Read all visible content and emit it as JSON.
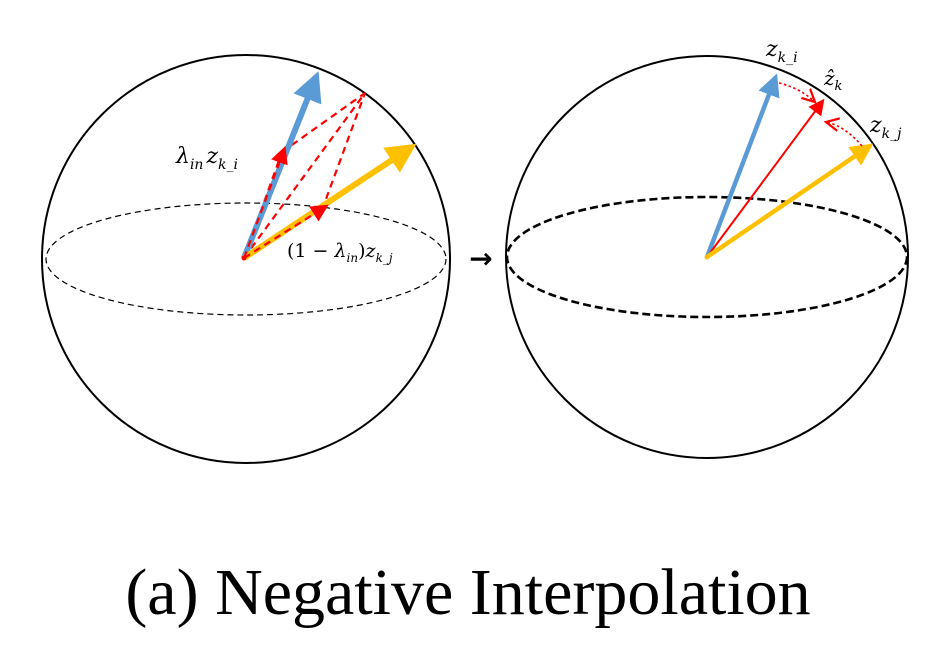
{
  "caption": "(a)  Negative Interpolation",
  "colors": {
    "blue_vector": "#5b9bd5",
    "yellow_vector": "#ffc000",
    "red_vector": "#ff0000",
    "outline": "#000000",
    "background": "#ffffff"
  },
  "left_sphere": {
    "labels": {
      "lambda_zi": {
        "lambda": "λ",
        "lambda_sub": "in",
        "z": "z",
        "z_sub": "k_i"
      },
      "one_minus_lambda_zj": {
        "prefix": "(1 − ",
        "lambda": "λ",
        "lambda_sub": "in",
        "suffix": ")",
        "z": "z",
        "z_sub": "k_j"
      }
    }
  },
  "transition_arrow": "→",
  "right_sphere": {
    "labels": {
      "zi": {
        "z": "z",
        "z_sub": "k_i"
      },
      "zhat": {
        "z": "ẑ",
        "z_sub": "k"
      },
      "zj": {
        "z": "z",
        "z_sub": "k_j"
      }
    }
  }
}
